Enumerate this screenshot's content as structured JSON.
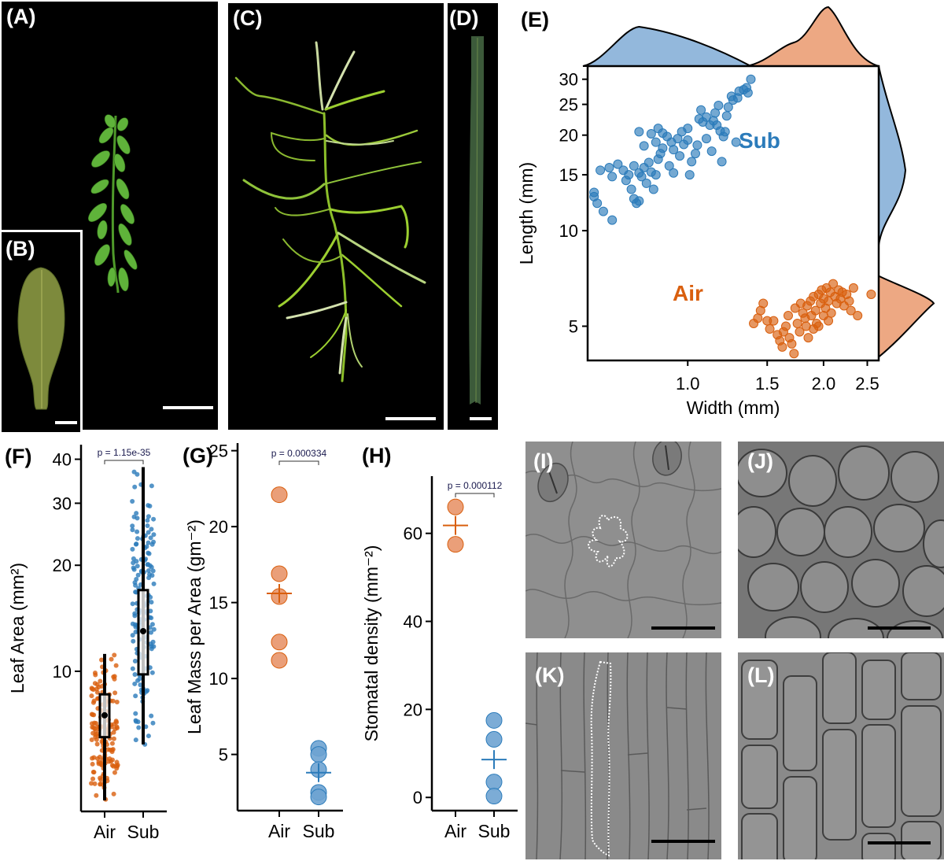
{
  "figure": {
    "panels": {
      "A": {
        "label": "(A)",
        "content": "shoot of aerial form on black background",
        "scale_bar": true
      },
      "B": {
        "label": "(B)",
        "content": "single aerial leaf",
        "scale_bar": true
      },
      "C": {
        "label": "(C)",
        "content": "shoot of submerged form with long narrow leaves",
        "scale_bar": true
      },
      "D": {
        "label": "(D)",
        "content": "single submerged leaf (long, linear)",
        "scale_bar": true
      },
      "E": {
        "label": "(E)"
      },
      "F": {
        "label": "(F)"
      },
      "G": {
        "label": "(G)"
      },
      "H": {
        "label": "(H)"
      },
      "I": {
        "label": "(I)",
        "content": "DIC micrograph: jigsaw-shaped epidermal cells with stomata, one cell outlined dotted",
        "scale_bar": true
      },
      "J": {
        "label": "(J)",
        "content": "DIC micrograph: rounded polygonal cells",
        "scale_bar": true
      },
      "K": {
        "label": "(K)",
        "content": "DIC micrograph: elongated epidermal cells, one outlined dotted",
        "scale_bar": true
      },
      "L": {
        "label": "(L)",
        "content": "DIC micrograph: elongated rectangular cells",
        "scale_bar": true
      }
    }
  },
  "colors": {
    "air": "#d95f0e",
    "air_light": "#e8956a",
    "sub": "#2b7bba",
    "sub_light": "#6ea3d1",
    "density_air": "#eda883",
    "density_sub": "#93b8dc",
    "pvalue_text": "#1a1a4e"
  },
  "chart_data": [
    {
      "panel": "E",
      "type": "scatter",
      "title": "",
      "xlabel": "Width (mm)",
      "ylabel": "Length (mm)",
      "x_scale": "log",
      "y_scale": "log",
      "xticks": [
        1.0,
        1.5,
        2.0,
        2.5
      ],
      "xtick_labels": [
        "1.0",
        "1.5",
        "2.0",
        "2.5"
      ],
      "yticks": [
        5,
        10,
        15,
        20,
        25,
        30
      ],
      "ytick_labels": [
        "5",
        "10",
        "15",
        "20",
        "25",
        "30"
      ],
      "xlim": [
        0.6,
        2.65
      ],
      "ylim": [
        3.9,
        33
      ],
      "annotations": [
        {
          "text": "Sub",
          "color": "#2b7bba"
        },
        {
          "text": "Air",
          "color": "#d95f0e"
        }
      ],
      "marginal_densities": {
        "top": "width distribution per group",
        "right": "length distribution per group"
      },
      "series": [
        {
          "name": "Sub",
          "points": [
            [
              0.62,
              13.2
            ],
            [
              0.62,
              12.8
            ],
            [
              0.63,
              12.2
            ],
            [
              0.65,
              11.5
            ],
            [
              0.68,
              10.8
            ],
            [
              0.64,
              15.5
            ],
            [
              0.67,
              15.8
            ],
            [
              0.7,
              16.2
            ],
            [
              0.68,
              14.8
            ],
            [
              0.72,
              15.5
            ],
            [
              0.74,
              15.0
            ],
            [
              0.73,
              14.4
            ],
            [
              0.75,
              13.5
            ],
            [
              0.76,
              12.6
            ],
            [
              0.77,
              12.2
            ],
            [
              0.78,
              12.4
            ],
            [
              0.76,
              16.0
            ],
            [
              0.78,
              15.2
            ],
            [
              0.8,
              15.8
            ],
            [
              0.79,
              14.8
            ],
            [
              0.82,
              16.4
            ],
            [
              0.81,
              14.1
            ],
            [
              0.83,
              15.3
            ],
            [
              0.85,
              15.0
            ],
            [
              0.84,
              13.5
            ],
            [
              0.86,
              16.8
            ],
            [
              0.87,
              17.5
            ],
            [
              0.88,
              18.2
            ],
            [
              0.85,
              19.0
            ],
            [
              0.8,
              18.5
            ],
            [
              0.78,
              20.5
            ],
            [
              0.83,
              20.2
            ],
            [
              0.86,
              21.0
            ],
            [
              0.88,
              20.3
            ],
            [
              0.9,
              19.8
            ],
            [
              0.92,
              19.0
            ],
            [
              0.93,
              18.0
            ],
            [
              0.95,
              19.5
            ],
            [
              0.97,
              20.5
            ],
            [
              0.96,
              17.2
            ],
            [
              0.91,
              16.0
            ],
            [
              0.93,
              15.2
            ],
            [
              0.98,
              18.7
            ],
            [
              1.0,
              19.3
            ],
            [
              1.02,
              16.5
            ],
            [
              1.04,
              17.5
            ],
            [
              1.05,
              18.6
            ],
            [
              1.01,
              15.0
            ],
            [
              1.0,
              21.0
            ],
            [
              1.08,
              22.0
            ],
            [
              1.06,
              22.5
            ],
            [
              1.07,
              24.0
            ],
            [
              1.1,
              22.8
            ],
            [
              1.12,
              21.5
            ],
            [
              1.14,
              22.2
            ],
            [
              1.15,
              23.5
            ],
            [
              1.16,
              21.5
            ],
            [
              1.18,
              20.6
            ],
            [
              1.1,
              19.5
            ],
            [
              1.13,
              17.8
            ],
            [
              1.19,
              16.5
            ],
            [
              1.2,
              19.8
            ],
            [
              1.21,
              20.5
            ],
            [
              1.22,
              23.0
            ],
            [
              1.23,
              24.5
            ],
            [
              1.25,
              26.5
            ],
            [
              1.26,
              25.8
            ],
            [
              1.29,
              26.2
            ],
            [
              1.3,
              27.5
            ],
            [
              1.33,
              27.8
            ],
            [
              1.35,
              28.2
            ],
            [
              1.36,
              27.2
            ],
            [
              1.38,
              30.0
            ],
            [
              1.28,
              19.0
            ],
            [
              1.17,
              24.8
            ]
          ]
        },
        {
          "name": "Air",
          "points": [
            [
              1.4,
              5.1
            ],
            [
              1.43,
              5.3
            ],
            [
              1.45,
              5.6
            ],
            [
              1.47,
              5.9
            ],
            [
              1.5,
              5.2
            ],
            [
              1.52,
              4.9
            ],
            [
              1.55,
              5.2
            ],
            [
              1.58,
              4.7
            ],
            [
              1.6,
              4.5
            ],
            [
              1.62,
              4.3
            ],
            [
              1.63,
              4.8
            ],
            [
              1.65,
              5.0
            ],
            [
              1.67,
              5.4
            ],
            [
              1.68,
              4.6
            ],
            [
              1.7,
              4.4
            ],
            [
              1.72,
              4.1
            ],
            [
              1.73,
              5.7
            ],
            [
              1.75,
              5.1
            ],
            [
              1.77,
              4.8
            ],
            [
              1.78,
              5.9
            ],
            [
              1.8,
              5.5
            ],
            [
              1.82,
              5.3
            ],
            [
              1.84,
              5.8
            ],
            [
              1.85,
              4.6
            ],
            [
              1.87,
              6.0
            ],
            [
              1.88,
              5.4
            ],
            [
              1.9,
              6.2
            ],
            [
              1.92,
              5.6
            ],
            [
              1.93,
              5.1
            ],
            [
              1.95,
              6.3
            ],
            [
              1.97,
              5.9
            ],
            [
              1.98,
              6.5
            ],
            [
              2.0,
              6.1
            ],
            [
              2.02,
              5.7
            ],
            [
              2.03,
              6.6
            ],
            [
              2.05,
              6.0
            ],
            [
              2.07,
              6.4
            ],
            [
              2.08,
              5.5
            ],
            [
              2.1,
              6.8
            ],
            [
              2.12,
              6.2
            ],
            [
              2.14,
              5.9
            ],
            [
              2.16,
              6.5
            ],
            [
              2.18,
              6.1
            ],
            [
              2.2,
              6.4
            ],
            [
              2.22,
              5.8
            ],
            [
              2.25,
              6.3
            ],
            [
              2.28,
              6.0
            ],
            [
              2.3,
              5.6
            ],
            [
              2.33,
              6.6
            ],
            [
              2.38,
              5.4
            ],
            [
              2.55,
              6.3
            ],
            [
              1.95,
              5.0
            ],
            [
              2.0,
              5.4
            ],
            [
              1.9,
              4.9
            ],
            [
              2.05,
              5.2
            ],
            [
              1.83,
              5.0
            ]
          ]
        }
      ]
    },
    {
      "panel": "F",
      "type": "box",
      "title": "",
      "xlabel": "",
      "ylabel": "Leaf Area (mm²)",
      "y_scale": "log",
      "categories": [
        "Air",
        "Sub"
      ],
      "yticks": [
        10,
        20,
        30,
        40
      ],
      "ytick_labels": [
        "10",
        "20",
        "30",
        "40"
      ],
      "ylim": [
        4.0,
        44
      ],
      "pvalue": "p = 1.15e-35",
      "series": [
        {
          "name": "Air",
          "min": 4.3,
          "q1": 6.5,
          "median": 7.4,
          "mean": 7.5,
          "q3": 8.6,
          "max": 11.2
        },
        {
          "name": "Sub",
          "min": 6.2,
          "q1": 9.8,
          "median": 12.3,
          "mean": 13.0,
          "q3": 17.0,
          "max": 38.0
        }
      ]
    },
    {
      "panel": "G",
      "type": "scatter",
      "title": "",
      "xlabel": "",
      "ylabel": "Leaf Mass per Area (gm⁻²)",
      "categories": [
        "Air",
        "Sub"
      ],
      "yticks": [
        5,
        10,
        15,
        20,
        25
      ],
      "ytick_labels": [
        "5",
        "10",
        "15",
        "20",
        "25"
      ],
      "ylim": [
        1.3,
        25.5
      ],
      "pvalue": "p = 0.000334",
      "series": [
        {
          "name": "Air",
          "values": [
            22.1,
            16.9,
            15.4,
            12.4,
            11.2
          ],
          "mean": 15.6
        },
        {
          "name": "Sub",
          "values": [
            5.4,
            5.0,
            4.0,
            2.5,
            2.2
          ],
          "mean": 3.8
        }
      ]
    },
    {
      "panel": "H",
      "type": "scatter",
      "title": "",
      "xlabel": "",
      "ylabel": "Stomatal density (mm⁻²)",
      "categories": [
        "Air",
        "Sub"
      ],
      "yticks": [
        0,
        20,
        40,
        60
      ],
      "ytick_labels": [
        "0",
        "20",
        "40",
        "60"
      ],
      "ylim": [
        -3,
        73
      ],
      "pvalue": "p = 0.000112",
      "series": [
        {
          "name": "Air",
          "values": [
            66,
            57.5
          ],
          "mean": 61.8
        },
        {
          "name": "Sub",
          "values": [
            17.5,
            13.2,
            3.5,
            0.3
          ],
          "mean": 8.6
        }
      ]
    }
  ],
  "axis_categories": [
    "Air",
    "Sub"
  ]
}
